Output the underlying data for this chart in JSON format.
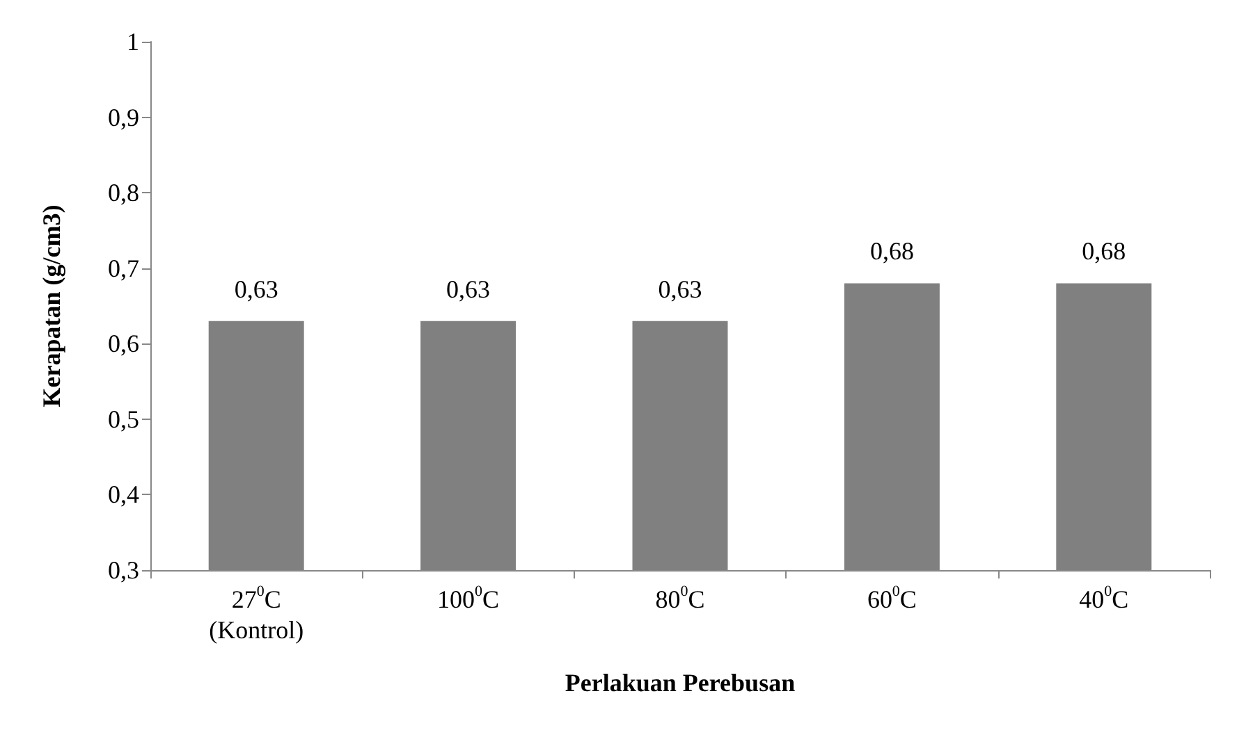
{
  "chart_data": {
    "type": "bar",
    "xlabel": "Perlakuan Perebusan",
    "ylabel": "Kerapatan (g/cm3)",
    "categories": [
      "27$^{0}$C\n(Kontrol)",
      "100$^{0}$C",
      "80$^{0}$C",
      "60$^{0}$C",
      "40$^{0}$C"
    ],
    "values": [
      0.63,
      0.63,
      0.63,
      0.68,
      0.68
    ],
    "value_labels": [
      "0,63",
      "0,63",
      "0,63",
      "0,68",
      "0,68"
    ],
    "color": "#808080",
    "ylim": [
      0.3,
      1
    ],
    "yticks": [
      {
        "value": 0.3,
        "label": "0,3"
      },
      {
        "value": 0.4,
        "label": "0,4"
      },
      {
        "value": 0.5,
        "label": "0,5"
      },
      {
        "value": 0.6,
        "label": "0,6"
      },
      {
        "value": 0.7,
        "label": "0,7"
      },
      {
        "value": 0.8,
        "label": "0,8"
      },
      {
        "value": 0.9,
        "label": "0,9"
      },
      1
    ],
    "grid": false
  }
}
